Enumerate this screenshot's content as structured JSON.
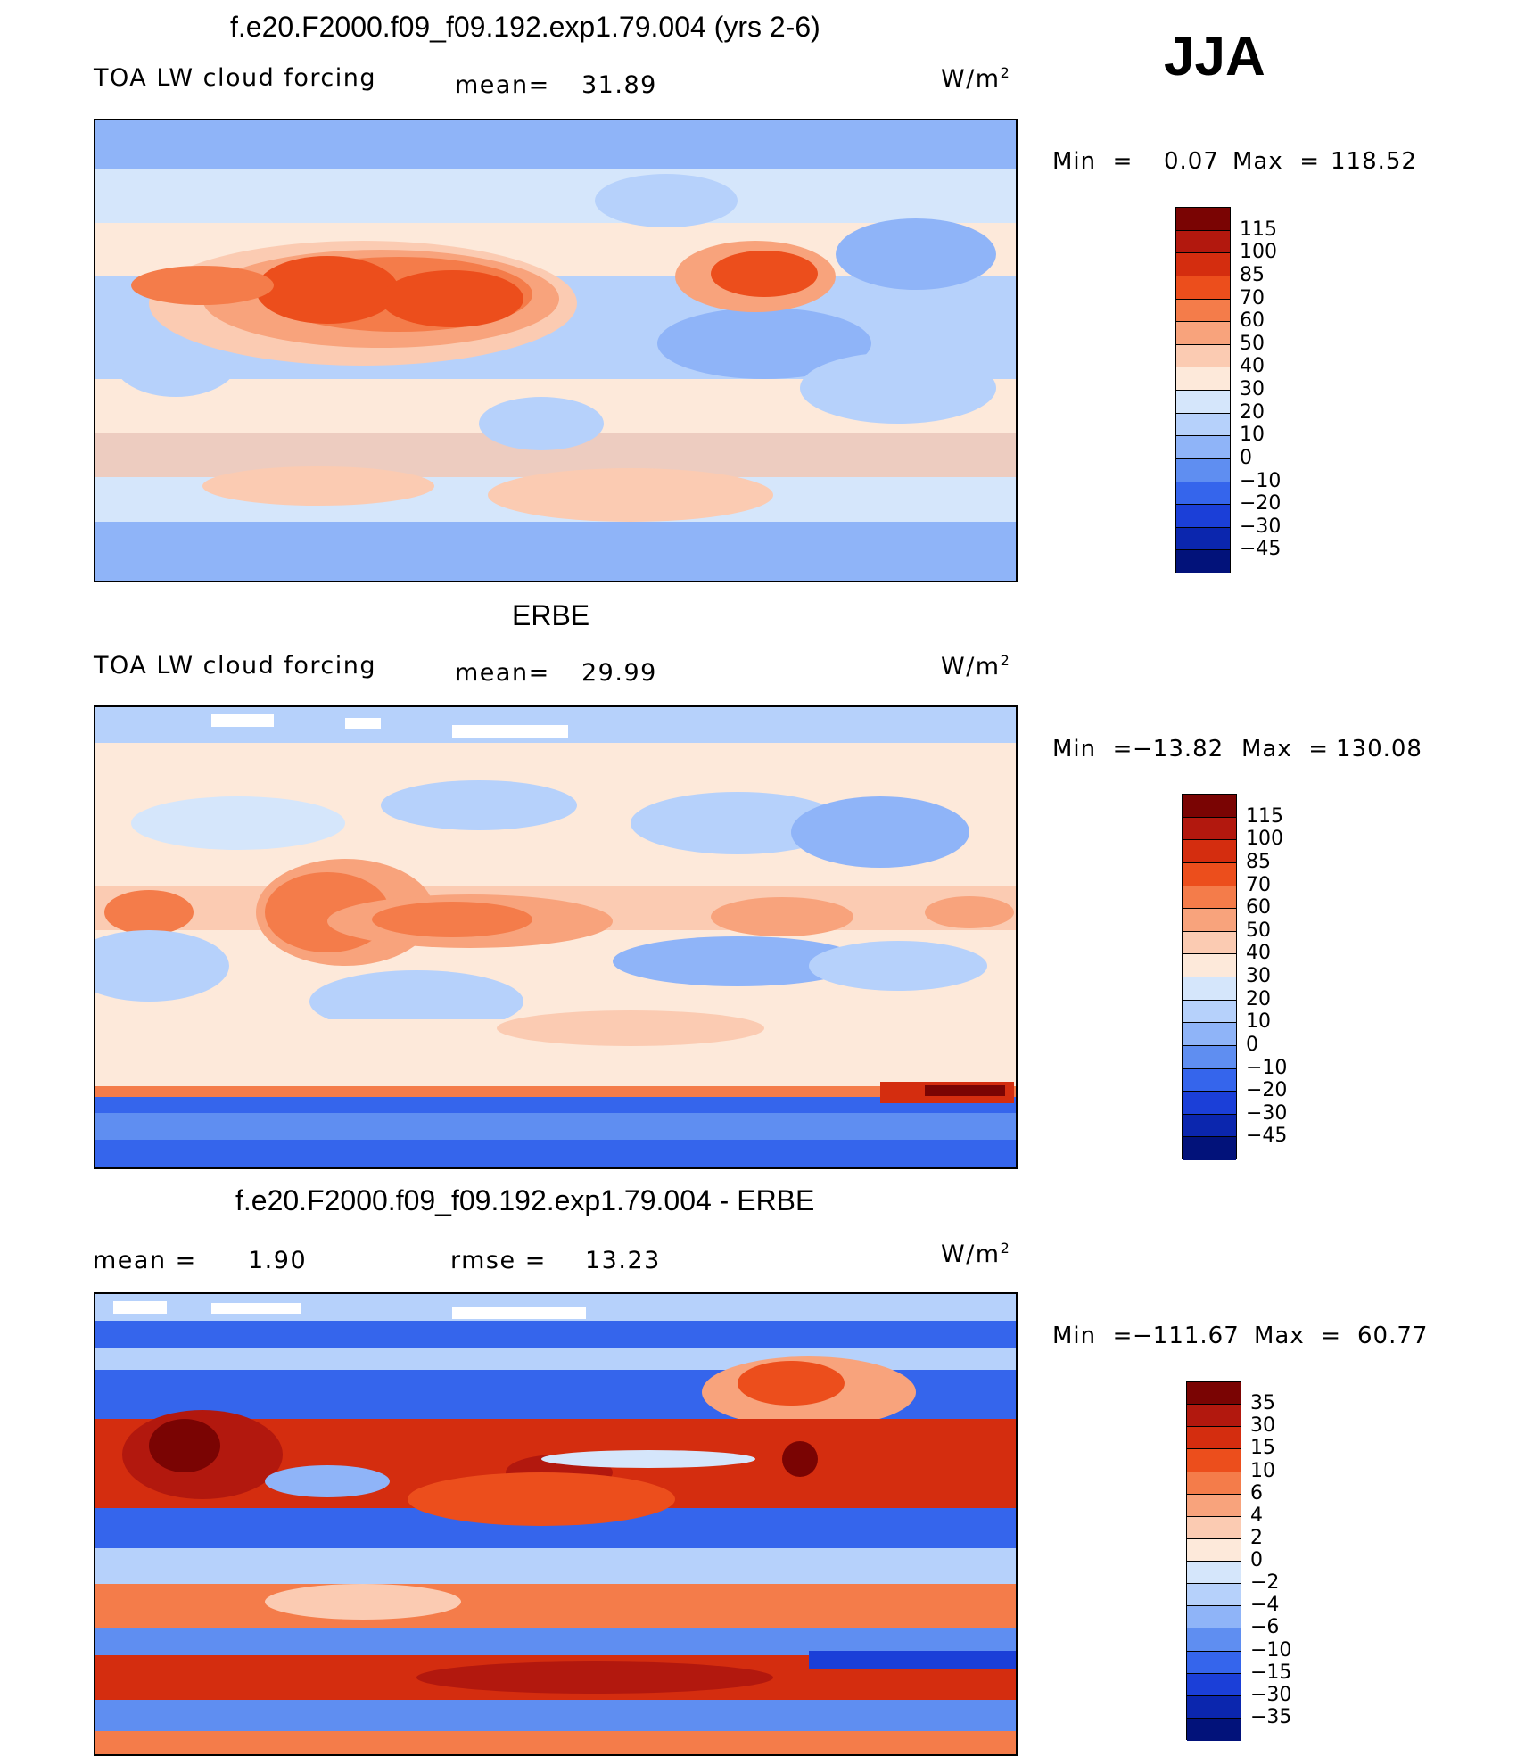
{
  "season": "JJA",
  "units": {
    "base": "W/m",
    "exp": "2"
  },
  "panels": [
    {
      "title": "f.e20.F2000.f09_f09.192.exp1.79.004 (yrs 2-6)",
      "variable": "TOA LW cloud forcing",
      "mean_label": "mean=",
      "mean": "31.89",
      "min_label": "Min  =",
      "min": "0.07",
      "max_label": "Max  =",
      "max": "118.52",
      "colorbar": {
        "labels": [
          "115",
          "100",
          "85",
          "70",
          "60",
          "50",
          "40",
          "30",
          "20",
          "10",
          "0",
          "−10",
          "−20",
          "−30",
          "−45"
        ],
        "colors": [
          "#7a0403",
          "#b2180e",
          "#d42d0f",
          "#ec4e1c",
          "#f47c4a",
          "#f8a37c",
          "#fbcbb2",
          "#fde9da",
          "#d5e6fb",
          "#b6d1fb",
          "#8fb4f8",
          "#5f8ef1",
          "#3565ec",
          "#1b3fd8",
          "#0b26ae",
          "#02127a"
        ]
      }
    },
    {
      "title": "ERBE",
      "variable": "TOA LW cloud forcing",
      "mean_label": "mean=",
      "mean": "29.99",
      "min_label": "Min  =",
      "min": "−13.82",
      "max_label": "Max  =",
      "max": "130.08",
      "colorbar": {
        "labels": [
          "115",
          "100",
          "85",
          "70",
          "60",
          "50",
          "40",
          "30",
          "20",
          "10",
          "0",
          "−10",
          "−20",
          "−30",
          "−45"
        ],
        "colors": [
          "#7a0403",
          "#b2180e",
          "#d42d0f",
          "#ec4e1c",
          "#f47c4a",
          "#f8a37c",
          "#fbcbb2",
          "#fde9da",
          "#d5e6fb",
          "#b6d1fb",
          "#8fb4f8",
          "#5f8ef1",
          "#3565ec",
          "#1b3fd8",
          "#0b26ae",
          "#02127a"
        ]
      }
    },
    {
      "title": "f.e20.F2000.f09_f09.192.exp1.79.004 - ERBE",
      "mean_label": "mean  =",
      "mean": "1.90",
      "rmse_label": "rmse  =",
      "rmse": "13.23",
      "min_label": "Min  =",
      "min": "−111.67",
      "max_label": "Max  =",
      "max": "60.77",
      "colorbar": {
        "labels": [
          "35",
          "30",
          "15",
          "10",
          "6",
          "4",
          "2",
          "0",
          "−2",
          "−4",
          "−6",
          "−10",
          "−15",
          "−30",
          "−35"
        ],
        "colors": [
          "#7a0403",
          "#b2180e",
          "#d42d0f",
          "#ec4e1c",
          "#f47c4a",
          "#f8a37c",
          "#fbcbb2",
          "#fde9da",
          "#d5e6fb",
          "#b6d1fb",
          "#8fb4f8",
          "#5f8ef1",
          "#3565ec",
          "#1b3fd8",
          "#0b26ae",
          "#02127a"
        ]
      }
    }
  ]
}
